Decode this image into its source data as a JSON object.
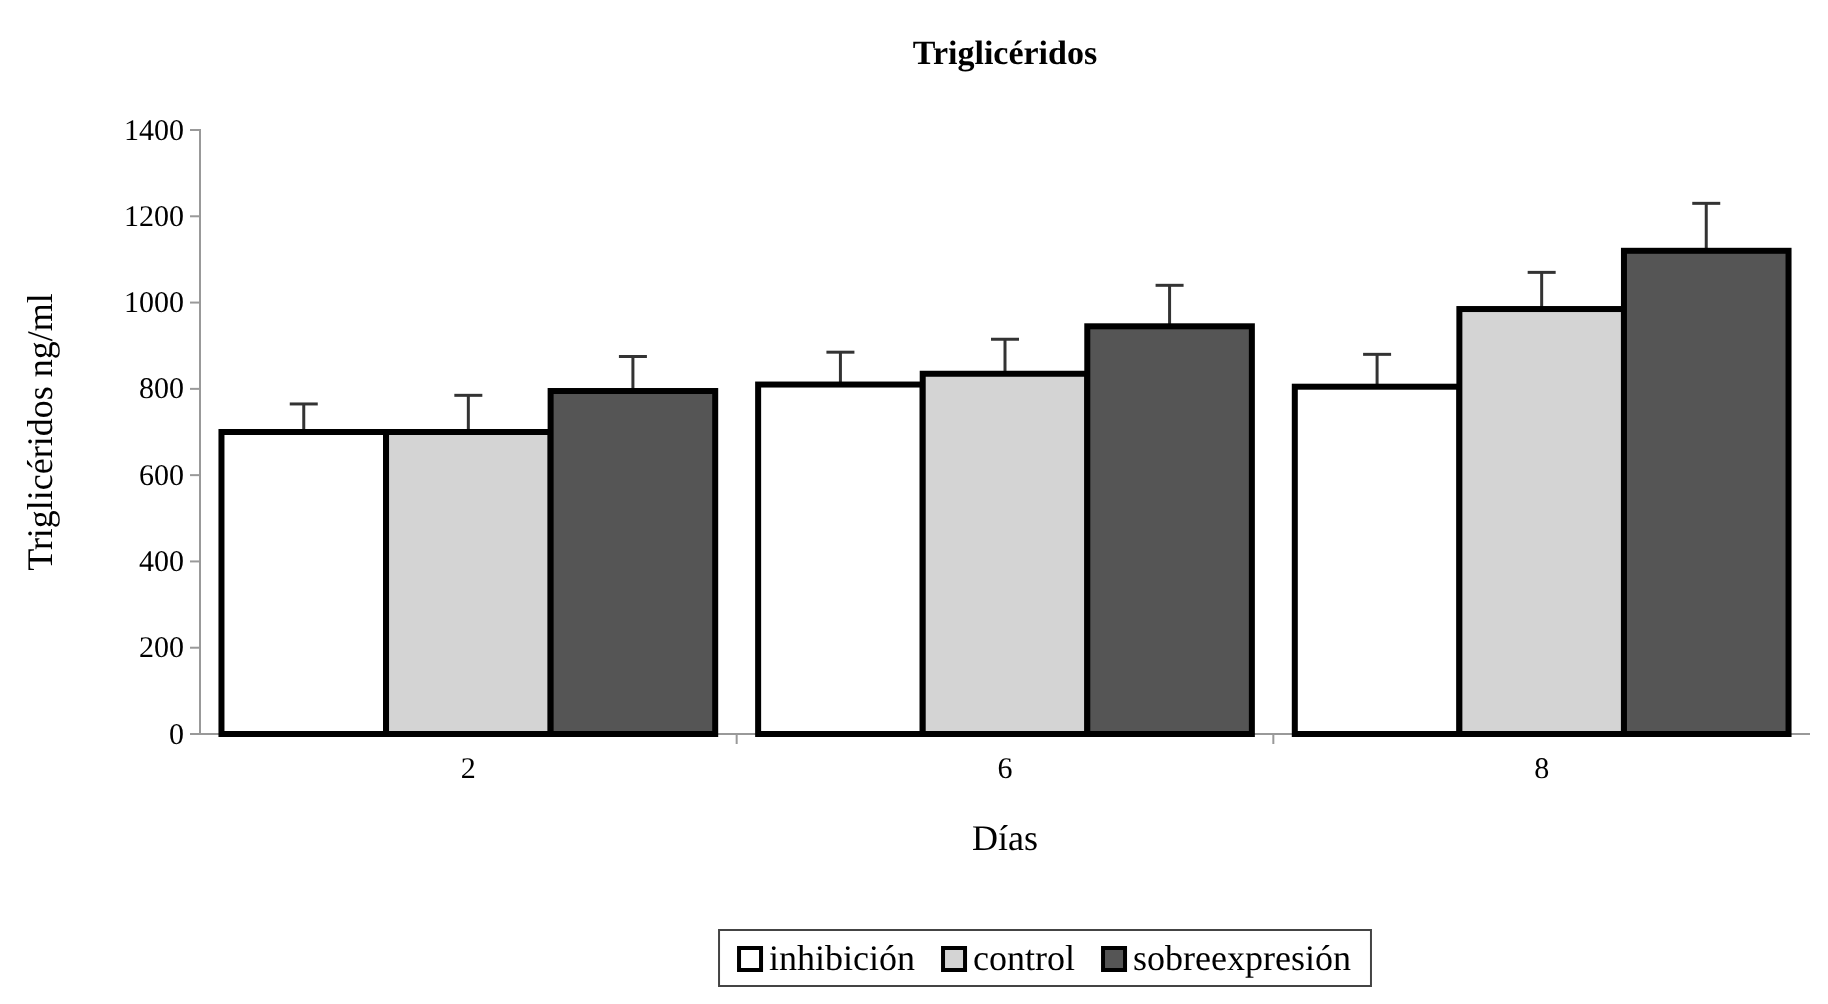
{
  "chart_data": {
    "type": "bar",
    "title": "Triglicéridos",
    "xlabel": "Días",
    "ylabel": "Triglicéridos ng/ml",
    "categories": [
      "2",
      "6",
      "8"
    ],
    "series": [
      {
        "name": "inhibición",
        "color": "#ffffff",
        "values": [
          700,
          810,
          805
        ],
        "errors": [
          65,
          75,
          75
        ]
      },
      {
        "name": "control",
        "color": "#d4d4d4",
        "values": [
          700,
          835,
          985
        ],
        "errors": [
          85,
          80,
          85
        ]
      },
      {
        "name": "sobreexpresión",
        "color": "#555555",
        "values": [
          795,
          945,
          1120
        ],
        "errors": [
          80,
          95,
          110
        ]
      }
    ],
    "ylim": [
      0,
      1400
    ],
    "yticks": [
      0,
      200,
      400,
      600,
      800,
      1000,
      1200,
      1400
    ],
    "grid": false,
    "legend": "bottom"
  }
}
